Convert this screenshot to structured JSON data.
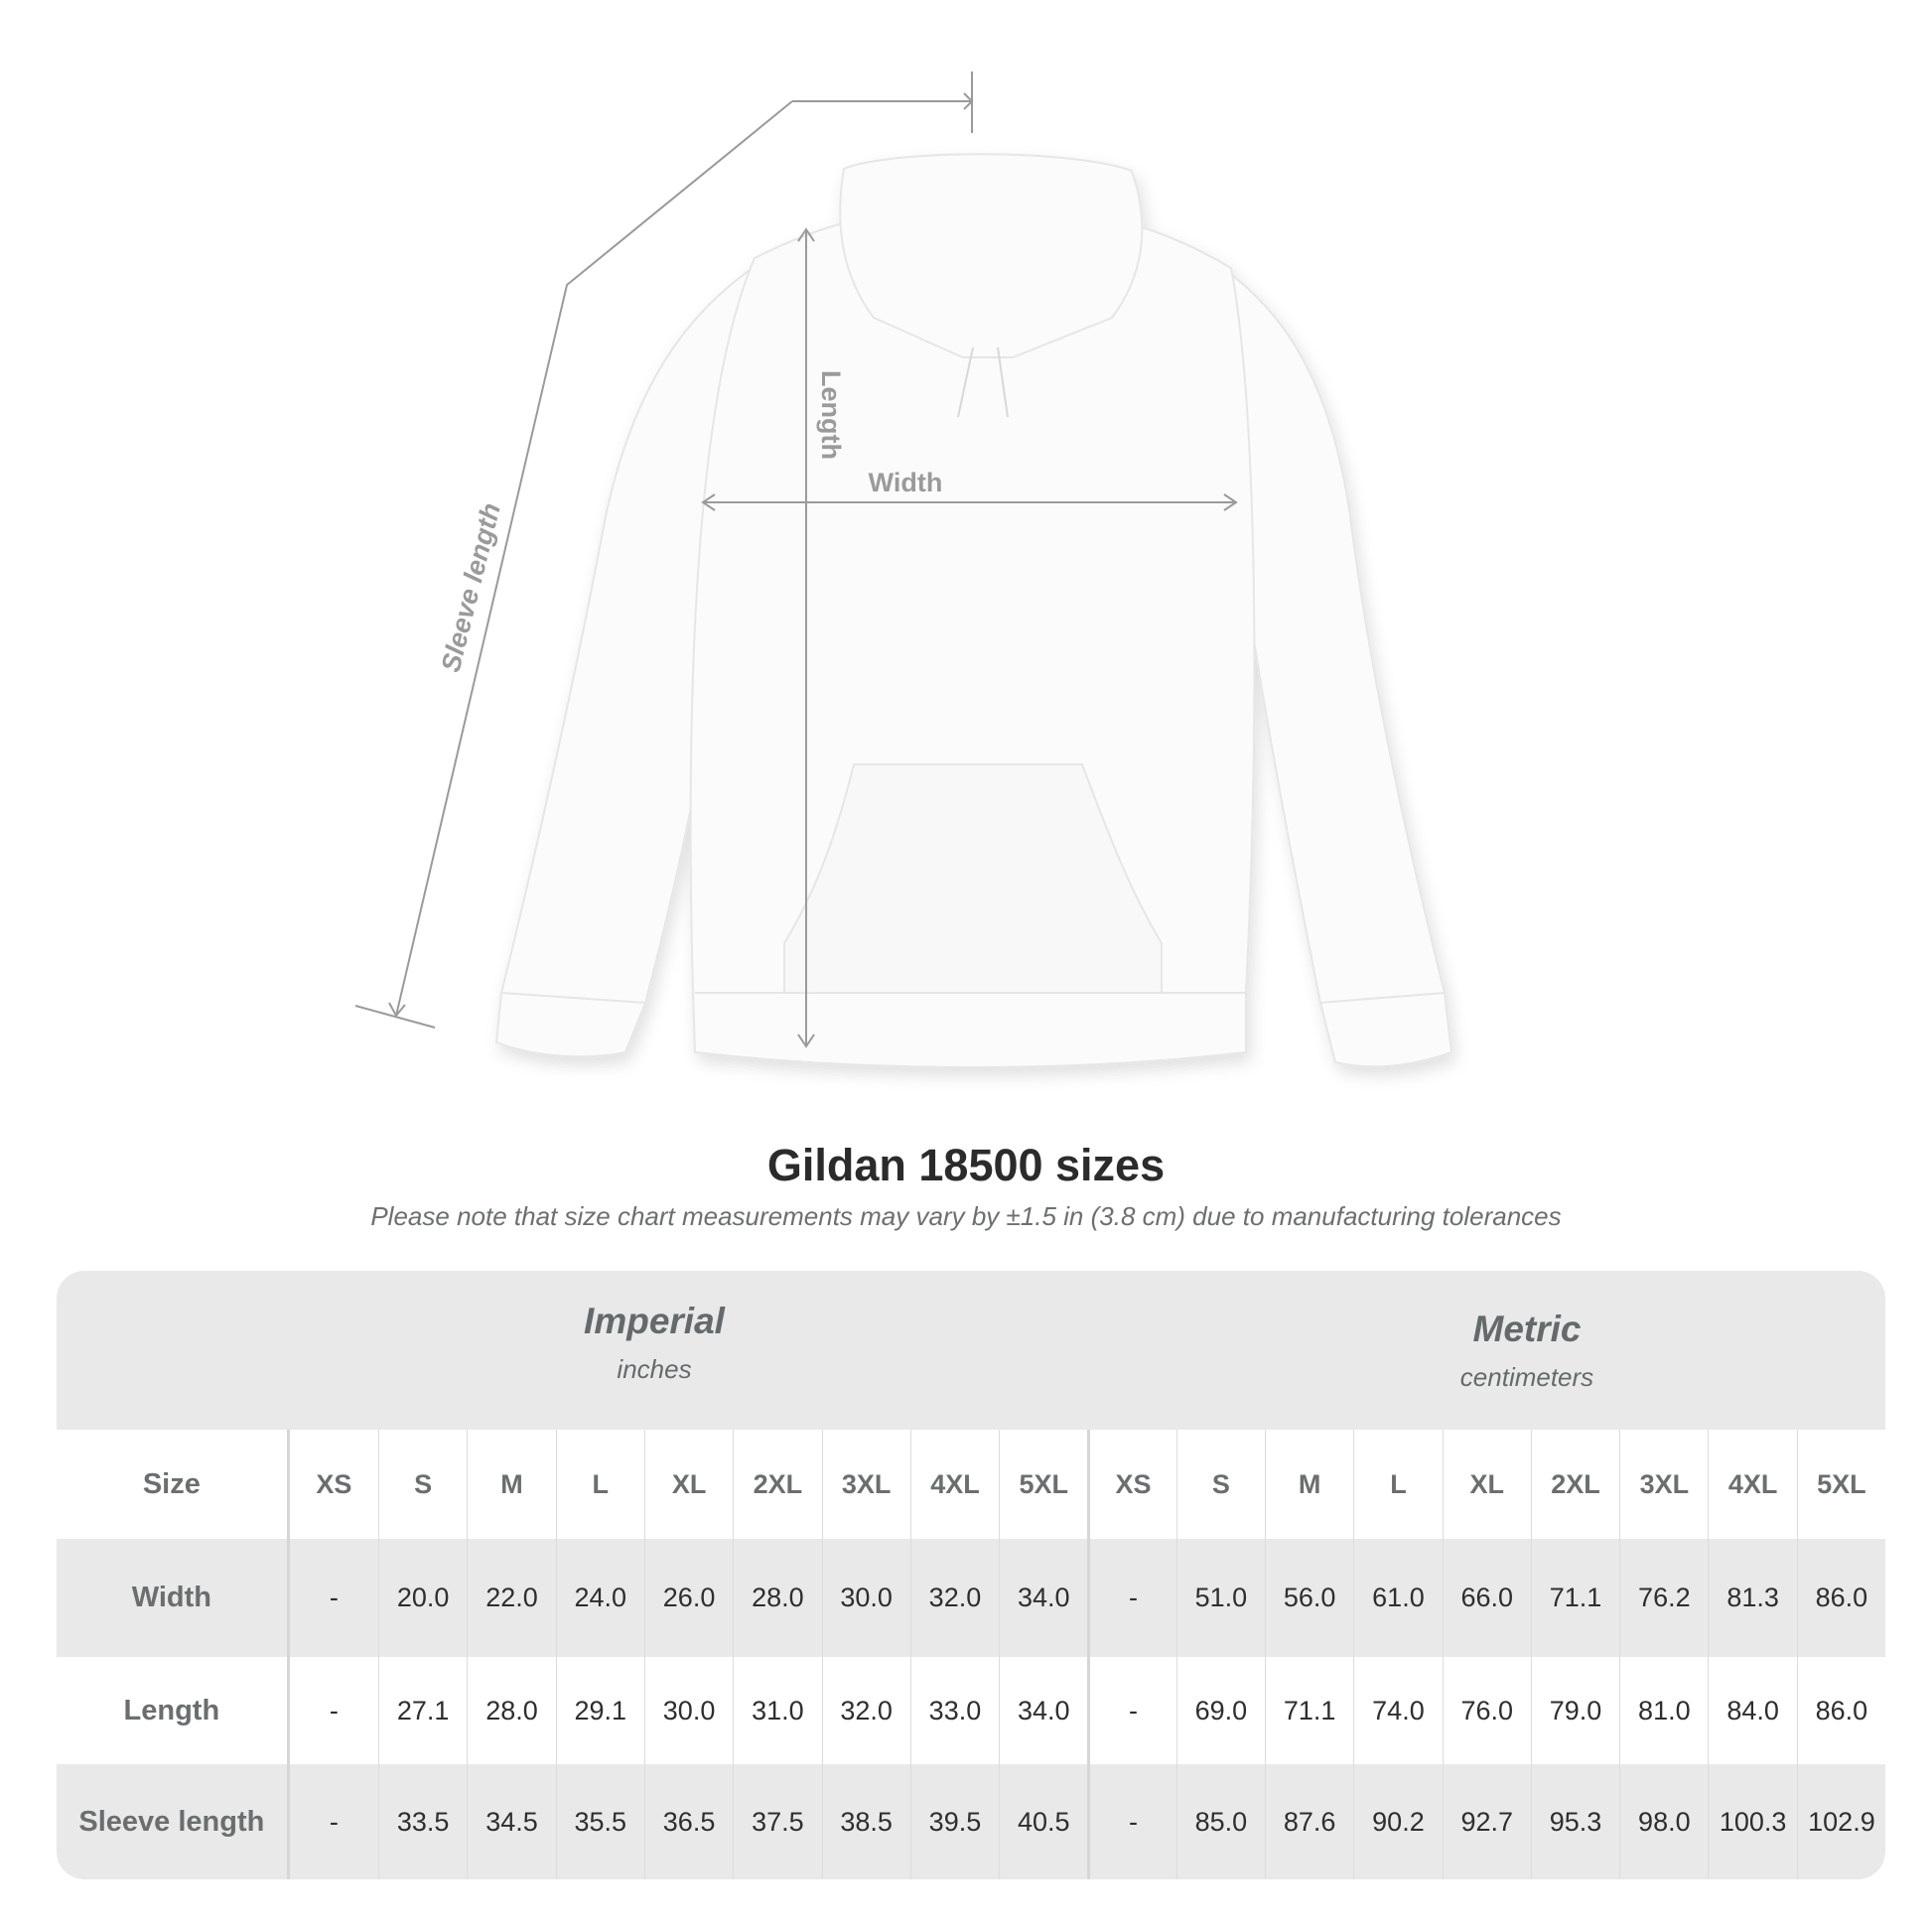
{
  "diagram": {
    "labels": {
      "sleeve": "Sleeve length",
      "length": "Length",
      "width": "Width"
    }
  },
  "title": "Gildan 18500 sizes",
  "note": "Please note that size chart measurements may vary by ±1.5 in (3.8 cm) due to manufacturing tolerances",
  "table": {
    "imperial": {
      "name": "Imperial",
      "unit": "inches"
    },
    "metric": {
      "name": "Metric",
      "unit": "centimeters"
    },
    "size_label": "Size",
    "sizes": [
      "XS",
      "S",
      "M",
      "L",
      "XL",
      "2XL",
      "3XL",
      "4XL",
      "5XL"
    ],
    "rows": [
      {
        "label": "Width",
        "imperial": [
          "-",
          "20.0",
          "22.0",
          "24.0",
          "26.0",
          "28.0",
          "30.0",
          "32.0",
          "34.0"
        ],
        "metric": [
          "-",
          "51.0",
          "56.0",
          "61.0",
          "66.0",
          "71.1",
          "76.2",
          "81.3",
          "86.0"
        ]
      },
      {
        "label": "Length",
        "imperial": [
          "-",
          "27.1",
          "28.0",
          "29.1",
          "30.0",
          "31.0",
          "32.0",
          "33.0",
          "34.0"
        ],
        "metric": [
          "-",
          "69.0",
          "71.1",
          "74.0",
          "76.0",
          "79.0",
          "81.0",
          "84.0",
          "86.0"
        ]
      },
      {
        "label": "Sleeve length",
        "imperial": [
          "-",
          "33.5",
          "34.5",
          "35.5",
          "36.5",
          "37.5",
          "38.5",
          "39.5",
          "40.5"
        ],
        "metric": [
          "-",
          "85.0",
          "87.6",
          "90.2",
          "92.7",
          "95.3",
          "98.0",
          "100.3",
          "102.9"
        ]
      }
    ]
  }
}
